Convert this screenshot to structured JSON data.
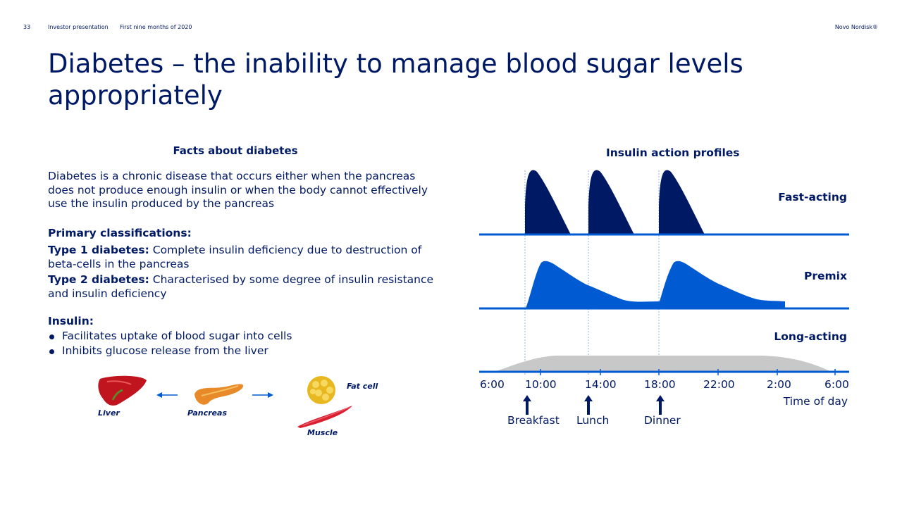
{
  "header": {
    "page_number": "33",
    "deck_name": "Investor presentation",
    "period": "First nine months of 2020",
    "brand": "Novo Nordisk®"
  },
  "title": "Diabetes – the inability to manage blood sugar levels appropriately",
  "facts": {
    "heading": "Facts about diabetes",
    "intro": "Diabetes is a chronic disease that occurs either when the pancreas does not produce enough insulin or when the body cannot effectively use the insulin produced by the pancreas",
    "classifications_heading": "Primary classifications:",
    "type1_label": "Type 1 diabetes:",
    "type1_text": " Complete insulin deficiency due to destruction of beta-cells in the pancreas",
    "type2_label": "Type 2 diabetes:",
    "type2_text": " Characterised by some degree of insulin resistance and insulin deficiency",
    "insulin_heading": "Insulin:",
    "insulin_points": [
      "Facilitates uptake of blood sugar into cells",
      "Inhibits glucose release from the liver"
    ]
  },
  "organs": {
    "liver": "Liver",
    "pancreas": "Pancreas",
    "fat_cell": "Fat cell",
    "muscle": "Muscle"
  },
  "chart_data": {
    "type": "area",
    "title": "Insulin action profiles",
    "xlabel": "Time of day",
    "x_ticks": [
      "6:00",
      "10:00",
      "14:00",
      "18:00",
      "22:00",
      "2:00",
      "6:00"
    ],
    "series": [
      {
        "name": "Fast-acting",
        "color": "#001965"
      },
      {
        "name": "Premix",
        "color": "#005ad2"
      },
      {
        "name": "Long-acting",
        "color": "#c8c8c8"
      }
    ],
    "meals": [
      {
        "label": "Breakfast",
        "time": "9:00"
      },
      {
        "label": "Lunch",
        "time": "13:00"
      },
      {
        "label": "Dinner",
        "time": "17:45"
      }
    ],
    "baseline_color": "#005ad2"
  }
}
